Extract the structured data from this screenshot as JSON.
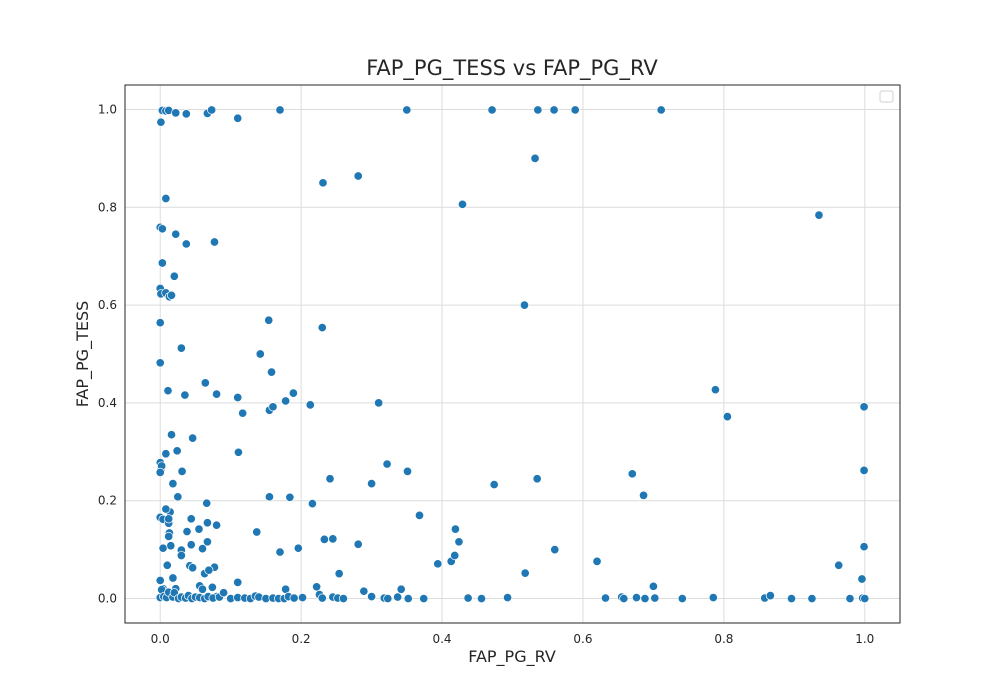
{
  "chart_data": {
    "type": "scatter",
    "title": "FAP_PG_TESS vs FAP_PG_RV",
    "xlabel": "FAP_PG_RV",
    "ylabel": "FAP_PG_TESS",
    "xlim": [
      -0.05,
      1.05
    ],
    "ylim": [
      -0.05,
      1.05
    ],
    "xticks": [
      0.0,
      0.2,
      0.4,
      0.6,
      0.8,
      1.0
    ],
    "yticks": [
      0.0,
      0.2,
      0.4,
      0.6,
      0.8,
      1.0
    ],
    "xtick_labels": [
      "0.0",
      "0.2",
      "0.4",
      "0.6",
      "0.8",
      "1.0"
    ],
    "ytick_labels": [
      "0.0",
      "0.2",
      "0.4",
      "0.6",
      "0.8",
      "1.0"
    ],
    "grid": true,
    "legend": "top-right (empty)",
    "color": "#1f77b4",
    "series": [
      {
        "x": [
          0.003,
          0.008,
          0.012,
          0.022,
          0.037,
          0.067,
          0.073,
          0.11,
          0.17,
          0.35,
          0.471,
          0.536,
          0.559,
          0.589,
          0.711,
          0.001,
          0.532,
          0.231,
          0.281,
          0.429,
          0.935,
          0.008,
          0.0,
          0.003,
          0.022,
          0.037,
          0.077,
          0.003,
          0.02,
          0.0,
          0.001,
          0.008,
          0.013,
          0.016,
          0.517,
          0.0,
          0.154,
          0.23,
          0.03,
          0.0,
          0.142,
          0.158,
          0.064,
          0.011,
          0.035,
          0.08,
          0.11,
          0.178,
          0.189,
          0.213,
          0.31,
          0.155,
          0.16,
          0.117,
          0.788,
          0.805,
          0.999,
          0.016,
          0.008,
          0.046,
          0.024,
          0.111,
          0.0,
          0.001,
          0.002,
          0.031,
          0.67,
          0.351,
          0.322,
          0.241,
          0.3,
          0.535,
          0.474,
          0.0,
          0.686,
          0.999,
          0.018,
          0.014,
          0.025,
          0.066,
          0.155,
          0.184,
          0.216,
          0.0,
          0.008,
          0.004,
          0.012,
          0.013,
          0.012,
          0.044,
          0.08,
          0.067,
          0.055,
          0.015,
          0.03,
          0.044,
          0.06,
          0.038,
          0.067,
          0.233,
          0.245,
          0.281,
          0.368,
          0.424,
          0.413,
          0.418,
          0.419,
          0.56,
          0.999,
          0.004,
          0.012,
          0.17,
          0.196,
          0.137,
          0.042,
          0.01,
          0.018,
          0.03,
          0.046,
          0.077,
          0.063,
          0.069,
          0.62,
          0.394,
          0.963,
          0.518,
          0.254,
          0.996,
          0.0,
          0.004,
          0.022,
          0.056,
          0.11,
          0.06,
          0.074,
          0.08,
          0.222,
          0.178,
          0.289,
          0.342,
          0.997,
          0.7,
          0.0,
          0.002,
          0.005,
          0.009,
          0.012,
          0.018,
          0.02,
          0.026,
          0.03,
          0.036,
          0.04,
          0.045,
          0.05,
          0.056,
          0.063,
          0.068,
          0.075,
          0.084,
          0.09,
          0.1,
          0.11,
          0.12,
          0.128,
          0.135,
          0.14,
          0.15,
          0.16,
          0.168,
          0.176,
          0.182,
          0.19,
          0.202,
          0.226,
          0.23,
          0.245,
          0.252,
          0.26,
          0.3,
          0.318,
          0.323,
          0.337,
          0.352,
          0.374,
          0.437,
          0.456,
          0.493,
          0.632,
          0.655,
          0.658,
          0.676,
          0.688,
          0.702,
          0.741,
          0.785,
          0.858,
          0.866,
          0.896,
          0.925,
          0.979,
          1.0
        ],
        "y": [
          0.998,
          0.997,
          0.998,
          0.993,
          0.991,
          0.992,
          0.999,
          0.982,
          0.999,
          0.999,
          0.999,
          0.999,
          0.999,
          0.999,
          0.999,
          0.974,
          0.9,
          0.85,
          0.864,
          0.806,
          0.784,
          0.818,
          0.759,
          0.756,
          0.745,
          0.725,
          0.729,
          0.686,
          0.659,
          0.634,
          0.623,
          0.625,
          0.617,
          0.62,
          0.6,
          0.564,
          0.569,
          0.554,
          0.512,
          0.482,
          0.5,
          0.463,
          0.441,
          0.425,
          0.416,
          0.418,
          0.411,
          0.404,
          0.42,
          0.396,
          0.4,
          0.385,
          0.392,
          0.379,
          0.427,
          0.372,
          0.392,
          0.335,
          0.296,
          0.328,
          0.302,
          0.299,
          0.278,
          0.263,
          0.271,
          0.26,
          0.255,
          0.26,
          0.275,
          0.245,
          0.235,
          0.245,
          0.233,
          0.258,
          0.211,
          0.262,
          0.235,
          0.177,
          0.208,
          0.195,
          0.208,
          0.207,
          0.194,
          0.166,
          0.183,
          0.162,
          0.154,
          0.134,
          0.127,
          0.163,
          0.15,
          0.155,
          0.142,
          0.108,
          0.099,
          0.11,
          0.102,
          0.137,
          0.116,
          0.121,
          0.122,
          0.111,
          0.17,
          0.116,
          0.076,
          0.088,
          0.142,
          0.1,
          0.106,
          0.103,
          0.163,
          0.095,
          0.103,
          0.136,
          0.067,
          0.068,
          0.042,
          0.088,
          0.063,
          0.064,
          0.051,
          0.058,
          0.076,
          0.071,
          0.068,
          0.052,
          0.051,
          0.04,
          0.037,
          0.02,
          0.02,
          0.026,
          0.033,
          0.019,
          0.023,
          0.004,
          0.024,
          0.019,
          0.015,
          0.019,
          0.001,
          0.025,
          0.002,
          0.018,
          0.004,
          0.002,
          0.013,
          0.003,
          0.012,
          0.0,
          0.003,
          0.001,
          0.006,
          0.0,
          0.003,
          0.002,
          0.0,
          0.004,
          0.001,
          0.003,
          0.012,
          0.0,
          0.002,
          0.001,
          0.0,
          0.005,
          0.003,
          0.0,
          0.001,
          0.0,
          0.0,
          0.004,
          0.001,
          0.002,
          0.008,
          0.001,
          0.003,
          0.001,
          0.0,
          0.004,
          0.001,
          0.0,
          0.003,
          0.0,
          0.0,
          0.001,
          0.0,
          0.002,
          0.001,
          0.003,
          0.0,
          0.002,
          0.0,
          0.001,
          0.0,
          0.002,
          0.001,
          0.006,
          0.0,
          0.0,
          0.0,
          0.0
        ]
      }
    ]
  }
}
